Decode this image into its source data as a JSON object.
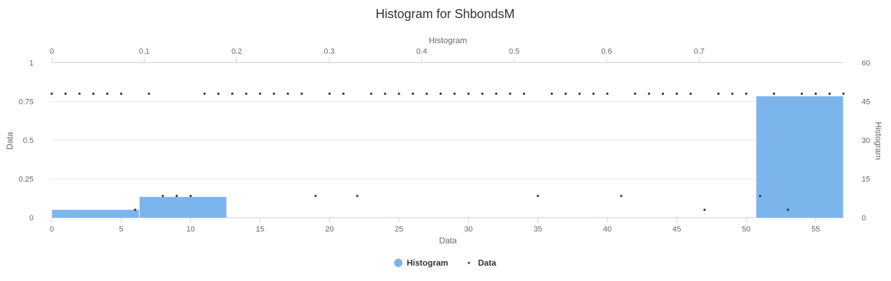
{
  "chart_data": {
    "type": "histogram+scatter",
    "title": "Histogram for ShbondsM",
    "x_axis": {
      "label": "Data",
      "range": [
        0,
        57
      ],
      "ticks": [
        0,
        5,
        10,
        15,
        20,
        25,
        30,
        35,
        40,
        45,
        50,
        55
      ]
    },
    "x2_axis": {
      "label": "Histogram",
      "range": [
        0,
        0.856
      ],
      "ticks": [
        0,
        0.1,
        0.2,
        0.3,
        0.4,
        0.5,
        0.6,
        0.7
      ]
    },
    "y_axis": {
      "label": "Data",
      "range": [
        0,
        1
      ],
      "ticks": [
        "0",
        "0.25",
        "0.5",
        "0.75",
        "1"
      ]
    },
    "y2_axis": {
      "label": "Histogram",
      "range": [
        0,
        60
      ],
      "ticks": [
        0,
        15,
        30,
        45,
        60
      ]
    },
    "grid": true,
    "legend": {
      "position": "bottom-center",
      "items": [
        {
          "name": "Histogram",
          "symbol": "circle",
          "color": "#7cb5ec"
        },
        {
          "name": "Data",
          "symbol": "dot",
          "color": "#333333"
        }
      ]
    },
    "series": [
      {
        "name": "Histogram",
        "type": "column",
        "color": "#7cb5ec",
        "bins": [
          {
            "x0": 0,
            "x1": 6.3,
            "value": 3
          },
          {
            "x0": 6.3,
            "x1": 12.6,
            "value": 8
          },
          {
            "x0": 50.7,
            "x1": 57,
            "value": 47
          }
        ]
      },
      {
        "name": "Data",
        "type": "scatter",
        "color": "#333333",
        "points": [
          [
            0,
            0.8
          ],
          [
            1,
            0.8
          ],
          [
            2,
            0.8
          ],
          [
            3,
            0.8
          ],
          [
            4,
            0.8
          ],
          [
            5,
            0.8
          ],
          [
            6,
            0.05
          ],
          [
            7,
            0.8
          ],
          [
            8,
            0.14
          ],
          [
            9,
            0.14
          ],
          [
            10,
            0.14
          ],
          [
            11,
            0.8
          ],
          [
            12,
            0.8
          ],
          [
            13,
            0.8
          ],
          [
            14,
            0.8
          ],
          [
            15,
            0.8
          ],
          [
            16,
            0.8
          ],
          [
            17,
            0.8
          ],
          [
            18,
            0.8
          ],
          [
            19,
            0.14
          ],
          [
            20,
            0.8
          ],
          [
            21,
            0.8
          ],
          [
            22,
            0.14
          ],
          [
            23,
            0.8
          ],
          [
            24,
            0.8
          ],
          [
            25,
            0.8
          ],
          [
            26,
            0.8
          ],
          [
            27,
            0.8
          ],
          [
            28,
            0.8
          ],
          [
            29,
            0.8
          ],
          [
            30,
            0.8
          ],
          [
            31,
            0.8
          ],
          [
            32,
            0.8
          ],
          [
            33,
            0.8
          ],
          [
            34,
            0.8
          ],
          [
            35,
            0.14
          ],
          [
            36,
            0.8
          ],
          [
            37,
            0.8
          ],
          [
            38,
            0.8
          ],
          [
            39,
            0.8
          ],
          [
            40,
            0.8
          ],
          [
            41,
            0.14
          ],
          [
            42,
            0.8
          ],
          [
            43,
            0.8
          ],
          [
            44,
            0.8
          ],
          [
            45,
            0.8
          ],
          [
            46,
            0.8
          ],
          [
            47,
            0.05
          ],
          [
            48,
            0.8
          ],
          [
            49,
            0.8
          ],
          [
            50,
            0.8
          ],
          [
            51,
            0.14
          ],
          [
            52,
            0.8
          ],
          [
            53,
            0.05
          ],
          [
            54,
            0.8
          ],
          [
            55,
            0.8
          ],
          [
            56,
            0.8
          ],
          [
            57,
            0.8
          ]
        ]
      }
    ]
  }
}
